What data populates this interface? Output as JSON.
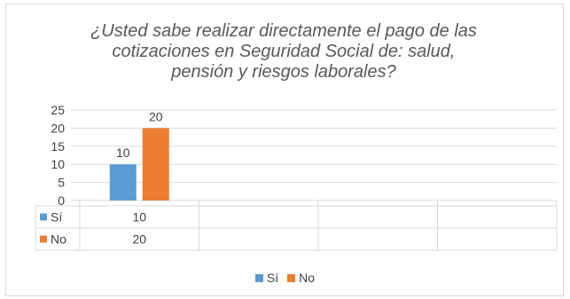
{
  "chart_data": {
    "type": "bar",
    "title": "¿Usted sabe realizar directamente el pago de las cotizaciones en Seguridad Social de: salud, pensión y riesgos laborales?",
    "title_lines": [
      "¿Usted sabe realizar directamente el pago de las",
      "cotizaciones en Seguridad Social de: salud,",
      "pensión y riesgos laborales?"
    ],
    "categories": [
      ""
    ],
    "category_slots": 4,
    "series": [
      {
        "name": "Sí",
        "values": [
          10
        ],
        "color": "#5b9bd5"
      },
      {
        "name": "No",
        "values": [
          20
        ],
        "color": "#ed7d31"
      }
    ],
    "ylim": [
      0,
      25
    ],
    "yticks": [
      "25",
      "20",
      "15",
      "10",
      "5",
      "0"
    ],
    "ytick_values": [
      25,
      20,
      15,
      10,
      5,
      0
    ],
    "grid": true,
    "legend": "bottom",
    "data_table": true,
    "xlabel": "",
    "ylabel": ""
  }
}
